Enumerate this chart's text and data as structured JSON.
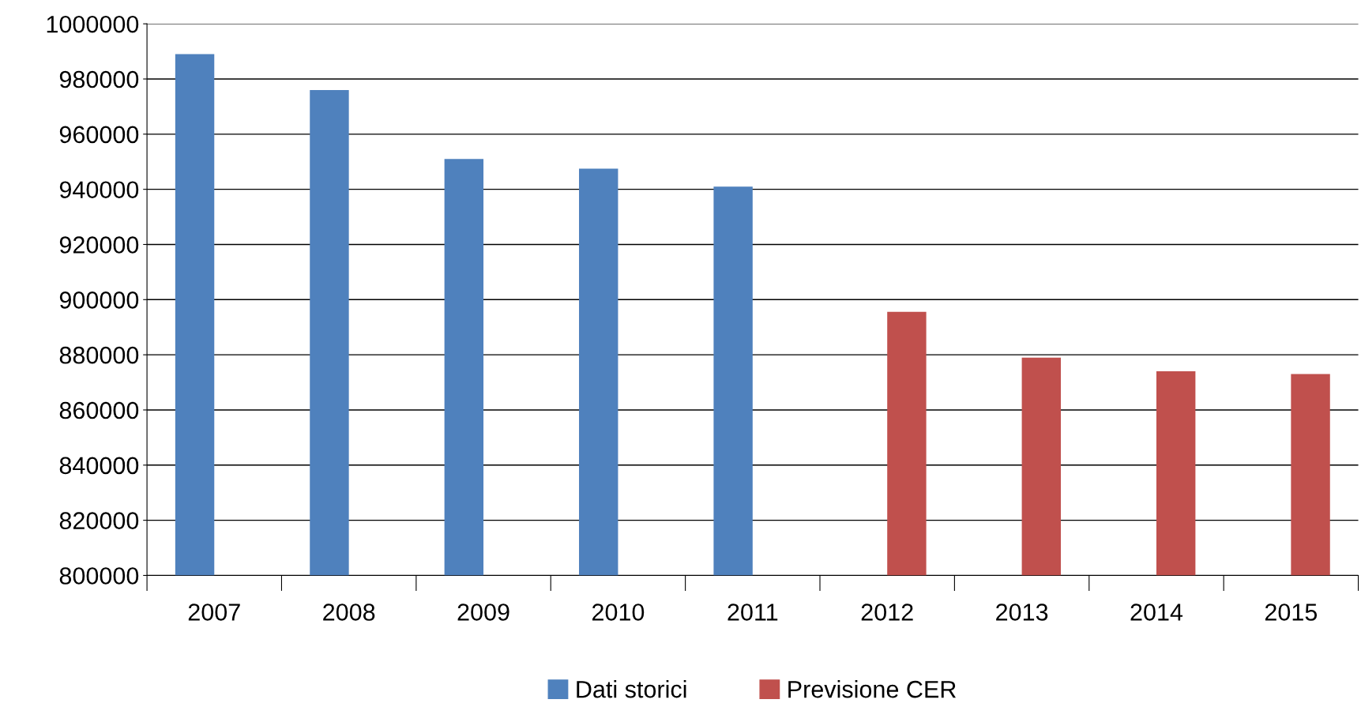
{
  "chart_data": {
    "type": "bar",
    "categories": [
      "2007",
      "2008",
      "2009",
      "2010",
      "2011",
      "2012",
      "2013",
      "2014",
      "2015"
    ],
    "series": [
      {
        "name": "Dati storici",
        "color": "#4f81bd",
        "values": [
          989000,
          976000,
          951000,
          947500,
          941000,
          null,
          null,
          null,
          null
        ]
      },
      {
        "name": "Previsione CER",
        "color": "#c0504d",
        "values": [
          null,
          null,
          null,
          null,
          null,
          895600,
          879000,
          874000,
          873000
        ]
      }
    ],
    "ylim": [
      800000,
      1000000
    ],
    "yticks": [
      800000,
      820000,
      840000,
      860000,
      880000,
      900000,
      920000,
      940000,
      960000,
      980000,
      1000000
    ],
    "grid": "y",
    "legend": "bottom"
  }
}
